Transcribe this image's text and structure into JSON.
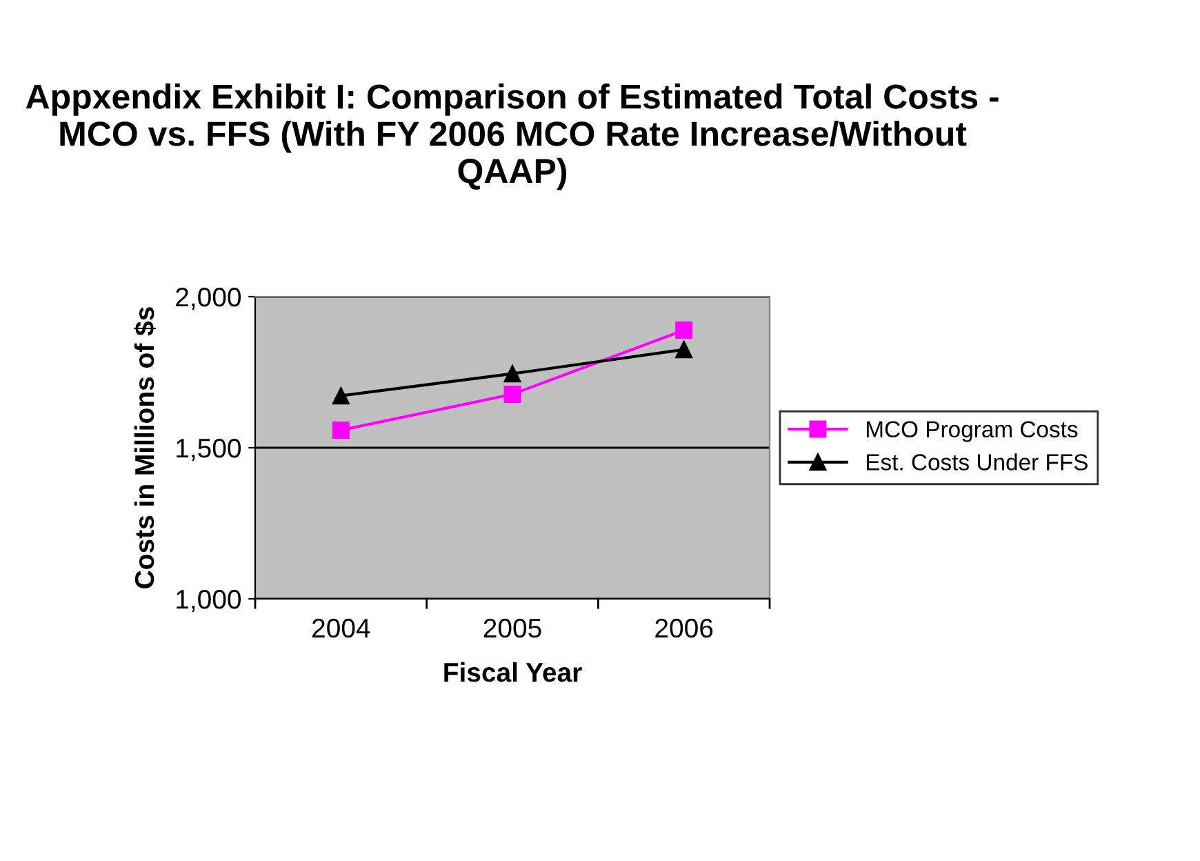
{
  "chart_data": {
    "type": "line",
    "title": "Appxendix Exhibit I: Comparison of Estimated Total Costs - MCO vs. FFS (With FY 2006 MCO Rate Increase/Without QAAP)",
    "xlabel": "Fiscal Year",
    "ylabel": "Costs in Millions of $s",
    "categories": [
      "2004",
      "2005",
      "2006"
    ],
    "series": [
      {
        "name": "MCO Program Costs",
        "color": "#ff00ff",
        "marker": "square",
        "values": [
          1558,
          1677,
          1889
        ]
      },
      {
        "name": "Est. Costs Under FFS",
        "color": "#000000",
        "marker": "triangle",
        "values": [
          1672,
          1745,
          1825
        ]
      }
    ],
    "ylim": [
      1000,
      2000
    ],
    "yticks": [
      {
        "value": 1000,
        "label": "1,000"
      },
      {
        "value": 1500,
        "label": "1,500"
      },
      {
        "value": 2000,
        "label": "2,000"
      }
    ],
    "grid": "y",
    "legend": "right"
  }
}
